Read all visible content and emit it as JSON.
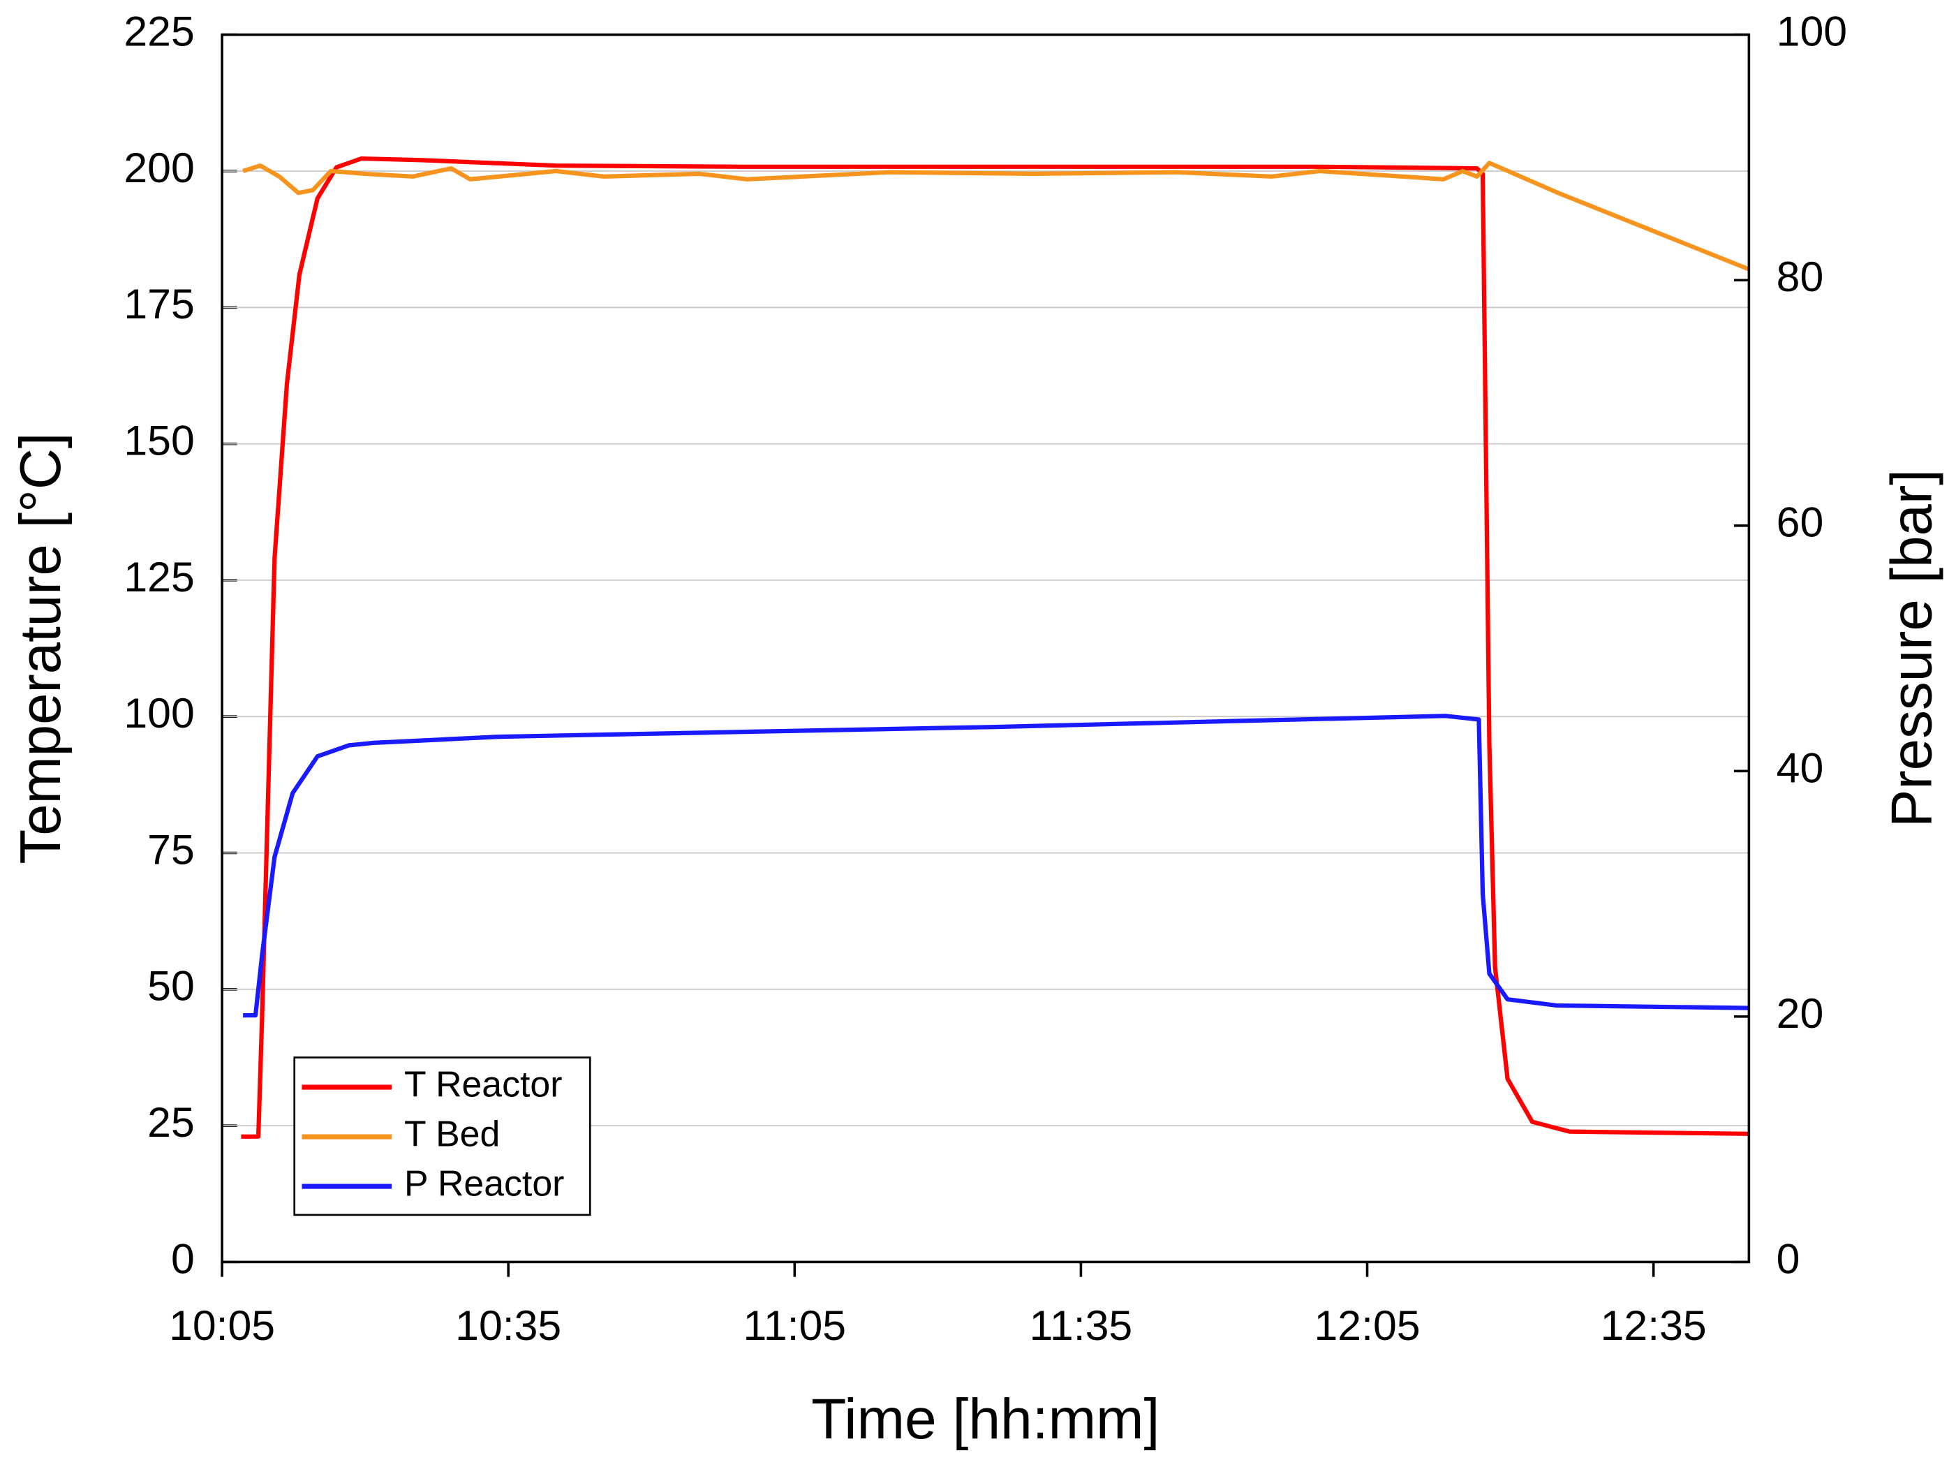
{
  "chart_data": {
    "type": "line",
    "x_label": "Time [hh:mm]",
    "y_label": "Temperature [°C]",
    "y2_label": "Pressure [bar]",
    "xlim": [
      605,
      765
    ],
    "xticks": [
      {
        "value": 605,
        "label": "10:05"
      },
      {
        "value": 635,
        "label": "10:35"
      },
      {
        "value": 665,
        "label": "11:05"
      },
      {
        "value": 695,
        "label": "11:35"
      },
      {
        "value": 725,
        "label": "12:05"
      },
      {
        "value": 755,
        "label": "12:35"
      }
    ],
    "ylim": [
      0,
      225
    ],
    "yticks": [
      0,
      25,
      50,
      75,
      100,
      125,
      150,
      175,
      200,
      225
    ],
    "y2lim": [
      0,
      100
    ],
    "y2ticks": [
      0,
      20,
      40,
      60,
      80,
      100
    ],
    "grid": true,
    "legend": "lower left",
    "series": [
      {
        "name": "T Reactor",
        "color": "#ff0000",
        "x": [
          607,
          608.8,
          609.2,
          610.5,
          611.8,
          613.1,
          615,
          617,
          619.6,
          626,
          640,
          660,
          680,
          700,
          720,
          736.5,
          737.1,
          737.8,
          738.4,
          739.7,
          742.3,
          746.2,
          765
        ],
        "values": [
          23,
          23,
          45,
          129,
          161,
          181,
          195,
          200.7,
          202.3,
          202,
          201,
          200.8,
          200.8,
          200.8,
          200.8,
          200.5,
          199.5,
          95,
          54,
          33.6,
          25.7,
          23.9,
          23.5
        ]
      },
      {
        "name": "T Bed",
        "color": "#f7941d",
        "x": [
          607.2,
          609,
          611,
          613,
          614.5,
          616.4,
          620,
          625,
          629,
          631,
          640,
          645,
          655,
          660,
          675,
          690,
          705,
          715,
          720,
          733,
          735,
          736.5,
          737.8,
          745,
          755,
          765
        ],
        "values": [
          200,
          201,
          199,
          196,
          196.5,
          200,
          199.5,
          199,
          200.5,
          198.5,
          200,
          199,
          199.5,
          198.5,
          199.8,
          199.5,
          199.8,
          199,
          200,
          198.5,
          200,
          199,
          201.5,
          196,
          189,
          182
        ]
      },
      {
        "name": "P Reactor",
        "color": "#1a1aff",
        "axis": "y2",
        "x": [
          607.2,
          608.5,
          609.2,
          610.5,
          612.4,
          615,
          618.3,
          620.9,
          634,
          660,
          686,
          712.3,
          733.2,
          736.7,
          737.1,
          737.8,
          739.7,
          744.9,
          765
        ],
        "values": [
          20.1,
          20.1,
          25,
          33,
          38.2,
          41.2,
          42.1,
          42.3,
          42.8,
          43.2,
          43.6,
          44.1,
          44.5,
          44.2,
          30,
          23.5,
          21.4,
          20.9,
          20.7
        ]
      }
    ]
  }
}
